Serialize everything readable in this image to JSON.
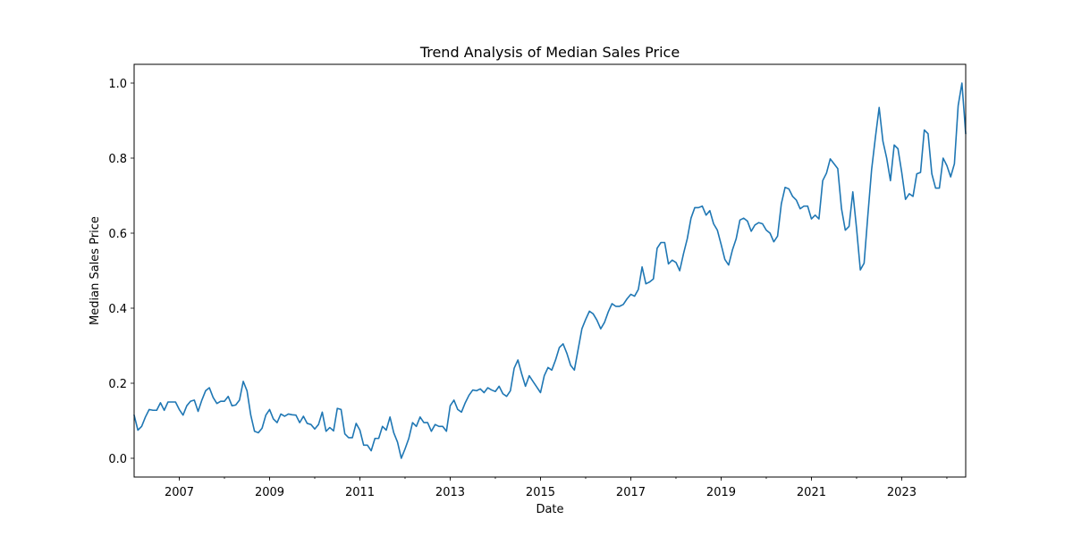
{
  "chart_data": {
    "type": "line",
    "title": "Trend Analysis of Median Sales Price",
    "xlabel": "Date",
    "ylabel": "Median Sales Price",
    "x_start": "2006-01",
    "x_end": "2024-06",
    "xlim": [
      "2006-01",
      "2024-06"
    ],
    "ylim": [
      -0.05,
      1.05
    ],
    "x_ticks": [
      {
        "value": "2007-01",
        "label": "2007"
      },
      {
        "value": "2009-01",
        "label": "2009"
      },
      {
        "value": "2011-01",
        "label": "2011"
      },
      {
        "value": "2013-01",
        "label": "2013"
      },
      {
        "value": "2015-01",
        "label": "2015"
      },
      {
        "value": "2017-01",
        "label": "2017"
      },
      {
        "value": "2019-01",
        "label": "2019"
      },
      {
        "value": "2021-01",
        "label": "2021"
      },
      {
        "value": "2023-01",
        "label": "2023"
      }
    ],
    "y_ticks": [
      {
        "value": 0.0,
        "label": "0.0"
      },
      {
        "value": 0.2,
        "label": "0.2"
      },
      {
        "value": 0.4,
        "label": "0.4"
      },
      {
        "value": 0.6,
        "label": "0.6"
      },
      {
        "value": 0.8,
        "label": "0.8"
      },
      {
        "value": 1.0,
        "label": "1.0"
      }
    ],
    "grid": false,
    "line_color": "#1f77b4",
    "series": [
      {
        "values": [
          0.115,
          0.075,
          0.085,
          0.11,
          0.13,
          0.128,
          0.128,
          0.148,
          0.128,
          0.15,
          0.15,
          0.15,
          0.13,
          0.115,
          0.14,
          0.152,
          0.155,
          0.125,
          0.155,
          0.18,
          0.188,
          0.162,
          0.146,
          0.152,
          0.152,
          0.165,
          0.14,
          0.142,
          0.155,
          0.205,
          0.18,
          0.115,
          0.072,
          0.068,
          0.08,
          0.115,
          0.13,
          0.105,
          0.095,
          0.118,
          0.112,
          0.118,
          0.116,
          0.115,
          0.095,
          0.112,
          0.093,
          0.09,
          0.078,
          0.09,
          0.123,
          0.072,
          0.082,
          0.073,
          0.133,
          0.13,
          0.065,
          0.055,
          0.055,
          0.093,
          0.075,
          0.035,
          0.035,
          0.02,
          0.053,
          0.053,
          0.085,
          0.075,
          0.11,
          0.068,
          0.043,
          0.0,
          0.025,
          0.053,
          0.095,
          0.085,
          0.11,
          0.095,
          0.095,
          0.072,
          0.09,
          0.085,
          0.085,
          0.072,
          0.14,
          0.155,
          0.13,
          0.123,
          0.148,
          0.168,
          0.182,
          0.18,
          0.185,
          0.175,
          0.188,
          0.182,
          0.178,
          0.192,
          0.172,
          0.165,
          0.18,
          0.24,
          0.262,
          0.225,
          0.192,
          0.22,
          0.205,
          0.19,
          0.175,
          0.22,
          0.242,
          0.235,
          0.262,
          0.295,
          0.305,
          0.28,
          0.248,
          0.235,
          0.29,
          0.345,
          0.37,
          0.392,
          0.385,
          0.368,
          0.345,
          0.362,
          0.39,
          0.412,
          0.405,
          0.405,
          0.41,
          0.425,
          0.437,
          0.432,
          0.45,
          0.51,
          0.465,
          0.47,
          0.478,
          0.56,
          0.575,
          0.575,
          0.518,
          0.528,
          0.522,
          0.5,
          0.545,
          0.585,
          0.64,
          0.668,
          0.668,
          0.672,
          0.648,
          0.66,
          0.625,
          0.608,
          0.57,
          0.53,
          0.515,
          0.555,
          0.585,
          0.635,
          0.64,
          0.632,
          0.605,
          0.622,
          0.628,
          0.625,
          0.608,
          0.6,
          0.577,
          0.592,
          0.678,
          0.722,
          0.718,
          0.698,
          0.688,
          0.665,
          0.672,
          0.672,
          0.638,
          0.648,
          0.638,
          0.74,
          0.76,
          0.798,
          0.785,
          0.772,
          0.665,
          0.608,
          0.618,
          0.71,
          0.612,
          0.502,
          0.52,
          0.648,
          0.77,
          0.855,
          0.935,
          0.845,
          0.8,
          0.74,
          0.835,
          0.825,
          0.762,
          0.69,
          0.705,
          0.698,
          0.758,
          0.762,
          0.875,
          0.865,
          0.758,
          0.72,
          0.72,
          0.8,
          0.78,
          0.75,
          0.785,
          0.94,
          1.0,
          0.865
        ]
      }
    ]
  }
}
